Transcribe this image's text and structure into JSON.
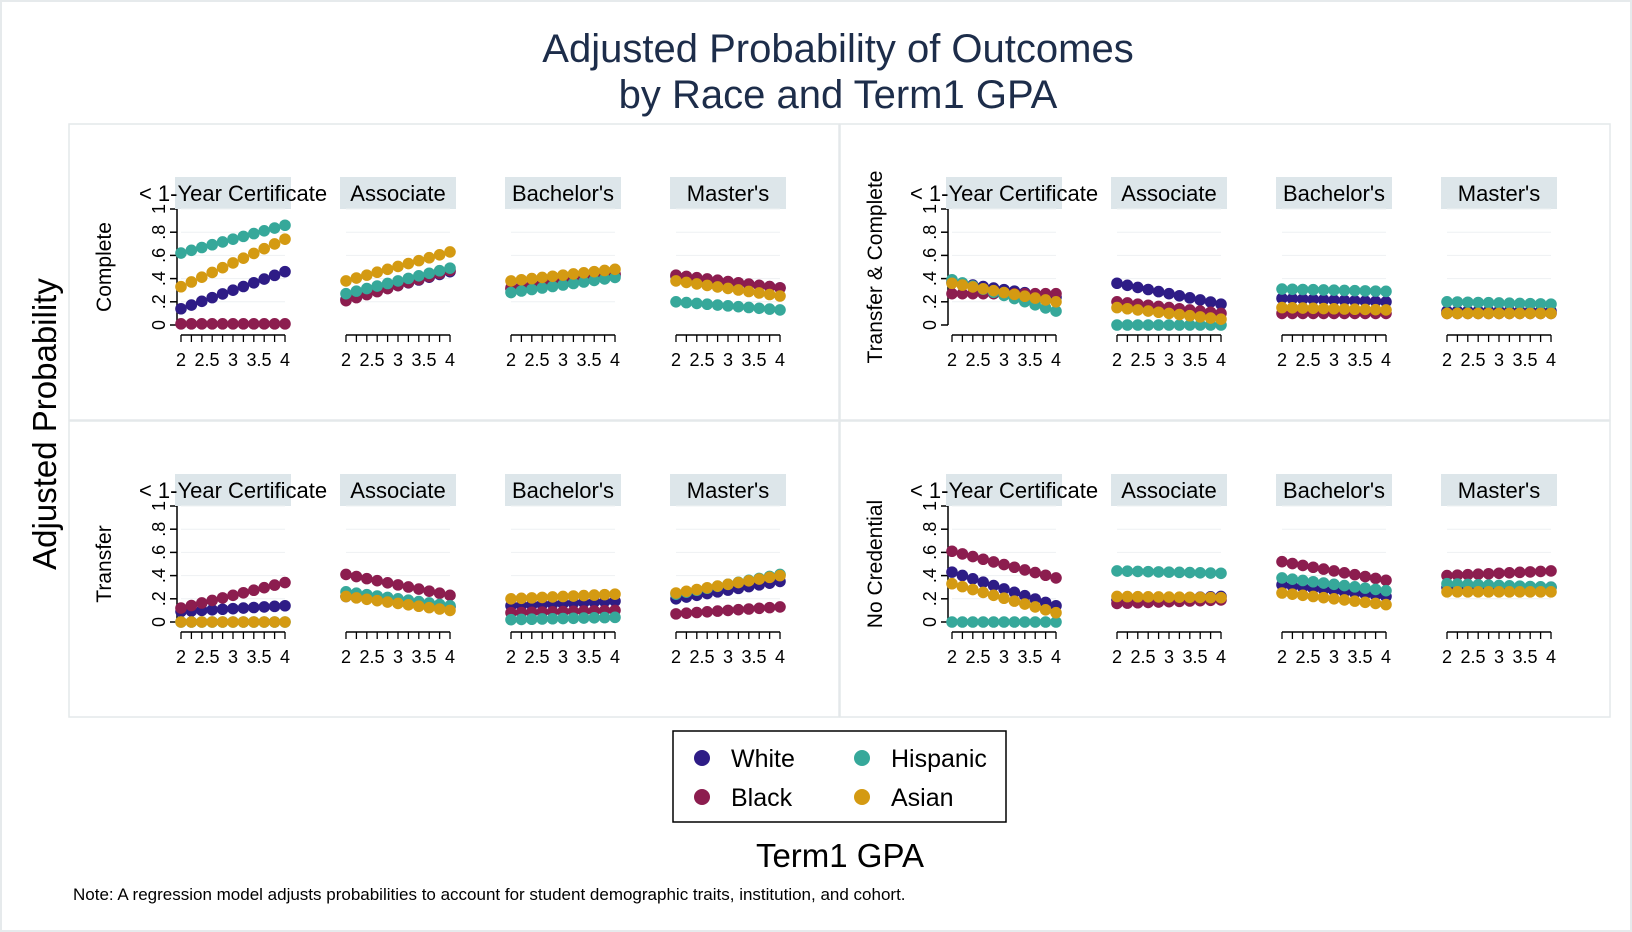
{
  "figure": {
    "title_line1": "Adjusted Probability of Outcomes",
    "title_line2": "by Race and Term1 GPA",
    "ylabel": "Adjusted Probability",
    "xlabel": "Term1 GPA",
    "note": "Note: A regression model adjusts probabilities to account for student demographic traits, institution, and cohort."
  },
  "colors": {
    "White": "#2e1c86",
    "Black": "#8c1d4f",
    "Hispanic": "#36a89a",
    "Asian": "#d49a12",
    "title": "#1d2d4a",
    "strip": "#dde6ea",
    "panel_border": "#e4e8ea"
  },
  "legend": {
    "entries": [
      "White",
      "Hispanic",
      "Black",
      "Asian"
    ]
  },
  "chart_data": {
    "type": "scatter",
    "x_ticks": [
      "2",
      "2.5",
      "3",
      "3.5",
      "4"
    ],
    "y_ticks": [
      "0",
      ".2",
      ".4",
      ".6",
      ".8",
      "1"
    ],
    "ylim": [
      0,
      1
    ],
    "xlim": [
      2,
      4
    ],
    "gpa": [
      2,
      2.2,
      2.4,
      2.6,
      2.8,
      3,
      3.2,
      3.4,
      3.6,
      3.8,
      4
    ],
    "series_names": [
      "White",
      "Black",
      "Hispanic",
      "Asian"
    ],
    "panels": [
      {
        "outcome": "Complete",
        "credentials": [
          {
            "name": "< 1-Year Certificate",
            "ends": {
              "White": [
                0.14,
                0.46
              ],
              "Black": [
                0.01,
                0.01
              ],
              "Hispanic": [
                0.62,
                0.86
              ],
              "Asian": [
                0.33,
                0.74
              ]
            }
          },
          {
            "name": "Associate",
            "ends": {
              "White": [
                0.22,
                0.46
              ],
              "Black": [
                0.21,
                0.47
              ],
              "Hispanic": [
                0.27,
                0.49
              ],
              "Asian": [
                0.38,
                0.63
              ]
            }
          },
          {
            "name": "Bachelor's",
            "ends": {
              "White": [
                0.31,
                0.43
              ],
              "Black": [
                0.32,
                0.44
              ],
              "Hispanic": [
                0.28,
                0.41
              ],
              "Asian": [
                0.38,
                0.48
              ]
            }
          },
          {
            "name": "Master's",
            "ends": {
              "White": [
                0.42,
                0.32
              ],
              "Black": [
                0.43,
                0.32
              ],
              "Hispanic": [
                0.2,
                0.13
              ],
              "Asian": [
                0.38,
                0.25
              ]
            }
          }
        ]
      },
      {
        "outcome": "Transfer & Complete",
        "credentials": [
          {
            "name": "< 1-Year Certificate",
            "ends": {
              "White": [
                0.37,
                0.24
              ],
              "Black": [
                0.27,
                0.27
              ],
              "Hispanic": [
                0.39,
                0.12
              ],
              "Asian": [
                0.36,
                0.2
              ]
            }
          },
          {
            "name": "Associate",
            "ends": {
              "White": [
                0.36,
                0.18
              ],
              "Black": [
                0.2,
                0.1
              ],
              "Hispanic": [
                0.0,
                0.0
              ],
              "Asian": [
                0.15,
                0.05
              ]
            }
          },
          {
            "name": "Bachelor's",
            "ends": {
              "White": [
                0.23,
                0.2
              ],
              "Black": [
                0.1,
                0.1
              ],
              "Hispanic": [
                0.31,
                0.29
              ],
              "Asian": [
                0.15,
                0.13
              ]
            }
          },
          {
            "name": "Master's",
            "ends": {
              "White": [
                0.12,
                0.12
              ],
              "Black": [
                0.1,
                0.1
              ],
              "Hispanic": [
                0.2,
                0.18
              ],
              "Asian": [
                0.1,
                0.1
              ]
            }
          }
        ]
      },
      {
        "outcome": "Transfer",
        "credentials": [
          {
            "name": "< 1-Year Certificate",
            "ends": {
              "White": [
                0.09,
                0.14
              ],
              "Black": [
                0.12,
                0.34
              ],
              "Hispanic": [
                0.0,
                0.0
              ],
              "Asian": [
                0.0,
                0.0
              ]
            }
          },
          {
            "name": "Associate",
            "ends": {
              "White": [
                0.22,
                0.13
              ],
              "Black": [
                0.41,
                0.23
              ],
              "Hispanic": [
                0.26,
                0.14
              ],
              "Asian": [
                0.22,
                0.1
              ]
            }
          },
          {
            "name": "Bachelor's",
            "ends": {
              "White": [
                0.14,
                0.18
              ],
              "Black": [
                0.08,
                0.1
              ],
              "Hispanic": [
                0.02,
                0.04
              ],
              "Asian": [
                0.2,
                0.24
              ]
            }
          },
          {
            "name": "Master's",
            "ends": {
              "White": [
                0.2,
                0.35
              ],
              "Black": [
                0.07,
                0.13
              ],
              "Hispanic": [
                0.24,
                0.41
              ],
              "Asian": [
                0.25,
                0.4
              ]
            }
          }
        ]
      },
      {
        "outcome": "No Credential",
        "credentials": [
          {
            "name": "< 1-Year Certificate",
            "ends": {
              "White": [
                0.43,
                0.14
              ],
              "Black": [
                0.61,
                0.38
              ],
              "Hispanic": [
                0.0,
                0.0
              ],
              "Asian": [
                0.33,
                0.08
              ]
            }
          },
          {
            "name": "Associate",
            "ends": {
              "White": [
                0.19,
                0.22
              ],
              "Black": [
                0.16,
                0.19
              ],
              "Hispanic": [
                0.44,
                0.42
              ],
              "Asian": [
                0.22,
                0.21
              ]
            }
          },
          {
            "name": "Bachelor's",
            "ends": {
              "White": [
                0.32,
                0.22
              ],
              "Black": [
                0.52,
                0.36
              ],
              "Hispanic": [
                0.38,
                0.27
              ],
              "Asian": [
                0.25,
                0.15
              ]
            }
          },
          {
            "name": "Master's",
            "ends": {
              "White": [
                0.3,
                0.3
              ],
              "Black": [
                0.4,
                0.44
              ],
              "Hispanic": [
                0.33,
                0.3
              ],
              "Asian": [
                0.26,
                0.26
              ]
            }
          }
        ]
      }
    ]
  }
}
